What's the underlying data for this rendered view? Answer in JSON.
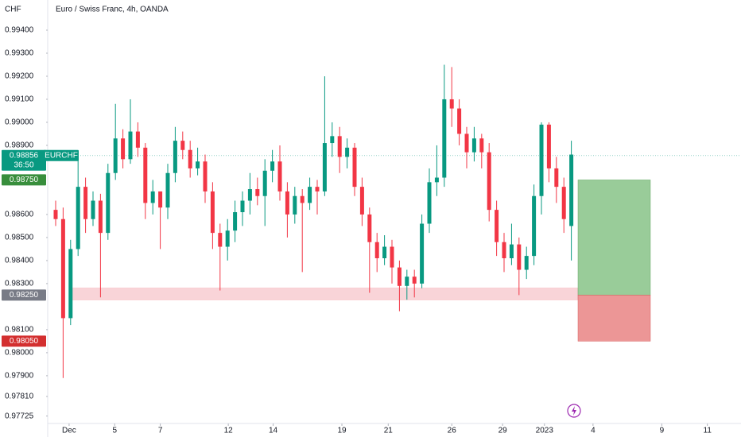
{
  "chart_data": {
    "type": "candlestick",
    "title": "Euro / Swiss Franc, 4h, OANDA",
    "currency": "CHF",
    "symbol": "EURCHF",
    "up_color": "#089981",
    "down_color": "#f23645",
    "ylim": [
      0.97703,
      0.99462
    ],
    "yticks": [
      {
        "value": 0.994,
        "label": "0.99400"
      },
      {
        "value": 0.993,
        "label": "0.99300"
      },
      {
        "value": 0.992,
        "label": "0.99200"
      },
      {
        "value": 0.991,
        "label": "0.99100"
      },
      {
        "value": 0.99,
        "label": "0.99000"
      },
      {
        "value": 0.989,
        "label": "0.98900"
      },
      {
        "value": 0.986,
        "label": "0.98600"
      },
      {
        "value": 0.985,
        "label": "0.98500"
      },
      {
        "value": 0.984,
        "label": "0.98400"
      },
      {
        "value": 0.983,
        "label": "0.98300"
      },
      {
        "value": 0.981,
        "label": "0.98100"
      },
      {
        "value": 0.98,
        "label": "0.98000"
      },
      {
        "value": 0.979,
        "label": "0.97900"
      },
      {
        "value": 0.9781,
        "label": "0.97810"
      },
      {
        "value": 0.97725,
        "label": "0.97725"
      }
    ],
    "xlim": [
      -0.85,
      91.7
    ],
    "xticks": [
      {
        "value": 1.8,
        "label": "Dec"
      },
      {
        "value": 7.9,
        "label": "5"
      },
      {
        "value": 14,
        "label": "7"
      },
      {
        "value": 23.1,
        "label": "12"
      },
      {
        "value": 29.1,
        "label": "14"
      },
      {
        "value": 38.3,
        "label": "19"
      },
      {
        "value": 44.5,
        "label": "21"
      },
      {
        "value": 53,
        "label": "26"
      },
      {
        "value": 59.8,
        "label": "29"
      },
      {
        "value": 65.4,
        "label": "2023"
      },
      {
        "value": 71.9,
        "label": "4"
      },
      {
        "value": 81.1,
        "label": "9"
      },
      {
        "value": 87.2,
        "label": "11"
      }
    ],
    "open": [
      0.9862,
      0.9858,
      0.9815,
      0.9845,
      0.9872,
      0.9858,
      0.9866,
      0.9852,
      0.9878,
      0.9893,
      0.9884,
      0.9896,
      0.9889,
      0.9865,
      0.987,
      0.9863,
      0.9878,
      0.9892,
      0.9888,
      0.988,
      0.9883,
      0.987,
      0.9852,
      0.9846,
      0.9853,
      0.9861,
      0.9866,
      0.9871,
      0.9868,
      0.9879,
      0.9883,
      0.987,
      0.986,
      0.9868,
      0.9865,
      0.9872,
      0.987,
      0.9891,
      0.9894,
      0.9885,
      0.9889,
      0.9872,
      0.986,
      0.9848,
      0.9841,
      0.9846,
      0.9837,
      0.9829,
      0.9833,
      0.983,
      0.9856,
      0.9874,
      0.9876,
      0.991,
      0.9906,
      0.9895,
      0.9887,
      0.9893,
      0.9887,
      0.9862,
      0.9848,
      0.9841,
      0.9847,
      0.9836,
      0.9842,
      0.9868,
      0.9899,
      0.988,
      0.9872,
      0.9855
    ],
    "high": [
      0.9866,
      0.9863,
      0.9849,
      0.9884,
      0.9876,
      0.987,
      0.9869,
      0.9882,
      0.9908,
      0.9897,
      0.991,
      0.99,
      0.9891,
      0.9875,
      0.987,
      0.9882,
      0.9898,
      0.9896,
      0.9892,
      0.9889,
      0.9886,
      0.9874,
      0.9856,
      0.9858,
      0.9866,
      0.987,
      0.9878,
      0.9876,
      0.9884,
      0.9888,
      0.989,
      0.9874,
      0.9872,
      0.9871,
      0.9876,
      0.9875,
      0.992,
      0.99,
      0.9898,
      0.9893,
      0.9891,
      0.9876,
      0.9863,
      0.9852,
      0.9851,
      0.9849,
      0.984,
      0.9836,
      0.9836,
      0.986,
      0.988,
      0.989,
      0.9925,
      0.9924,
      0.991,
      0.9898,
      0.9898,
      0.9895,
      0.9891,
      0.9866,
      0.9852,
      0.9856,
      0.985,
      0.9846,
      0.9873,
      0.99,
      0.99,
      0.9885,
      0.9876,
      0.9892
    ],
    "low": [
      0.9855,
      0.9789,
      0.9812,
      0.9842,
      0.9852,
      0.9855,
      0.9824,
      0.9849,
      0.9875,
      0.988,
      0.9882,
      0.9885,
      0.9858,
      0.986,
      0.9845,
      0.9858,
      0.9874,
      0.9884,
      0.9876,
      0.9877,
      0.9865,
      0.9845,
      0.9827,
      0.984,
      0.9848,
      0.9855,
      0.986,
      0.9864,
      0.9855,
      0.9874,
      0.9866,
      0.985,
      0.9856,
      0.9835,
      0.9862,
      0.986,
      0.9868,
      0.9885,
      0.9878,
      0.988,
      0.9868,
      0.9855,
      0.9826,
      0.9835,
      0.9838,
      0.983,
      0.9818,
      0.9823,
      0.9824,
      0.9828,
      0.9852,
      0.9868,
      0.9872,
      0.9898,
      0.989,
      0.988,
      0.9883,
      0.988,
      0.9857,
      0.9842,
      0.9835,
      0.9838,
      0.9825,
      0.9832,
      0.9838,
      0.986,
      0.9874,
      0.9865,
      0.9852,
      0.984
    ],
    "close": [
      0.9858,
      0.9815,
      0.9845,
      0.9872,
      0.9858,
      0.9866,
      0.9852,
      0.9878,
      0.9893,
      0.9884,
      0.9896,
      0.9889,
      0.9865,
      0.987,
      0.9863,
      0.9878,
      0.9892,
      0.9888,
      0.988,
      0.9883,
      0.987,
      0.9852,
      0.9846,
      0.9853,
      0.9861,
      0.9866,
      0.9871,
      0.9868,
      0.9879,
      0.9883,
      0.987,
      0.986,
      0.9868,
      0.9865,
      0.9872,
      0.987,
      0.9891,
      0.9894,
      0.9885,
      0.9889,
      0.9872,
      0.986,
      0.9848,
      0.9841,
      0.9846,
      0.9837,
      0.9829,
      0.9833,
      0.983,
      0.9856,
      0.9874,
      0.9876,
      0.991,
      0.9906,
      0.9895,
      0.9887,
      0.9893,
      0.9887,
      0.9862,
      0.9848,
      0.9841,
      0.9847,
      0.9836,
      0.9842,
      0.9868,
      0.9899,
      0.988,
      0.9872,
      0.9858,
      0.9886
    ],
    "current_price": {
      "value": 0.98856,
      "label": "0.98856"
    },
    "countdown": "36:50",
    "zone": {
      "high": 0.9828,
      "low": 0.9823
    },
    "position": {
      "target": {
        "value": 0.9875,
        "label": "0.98750"
      },
      "entry": {
        "value": 0.9825,
        "label": "0.98250"
      },
      "stop": {
        "value": 0.9805,
        "label": "0.98050"
      }
    }
  }
}
